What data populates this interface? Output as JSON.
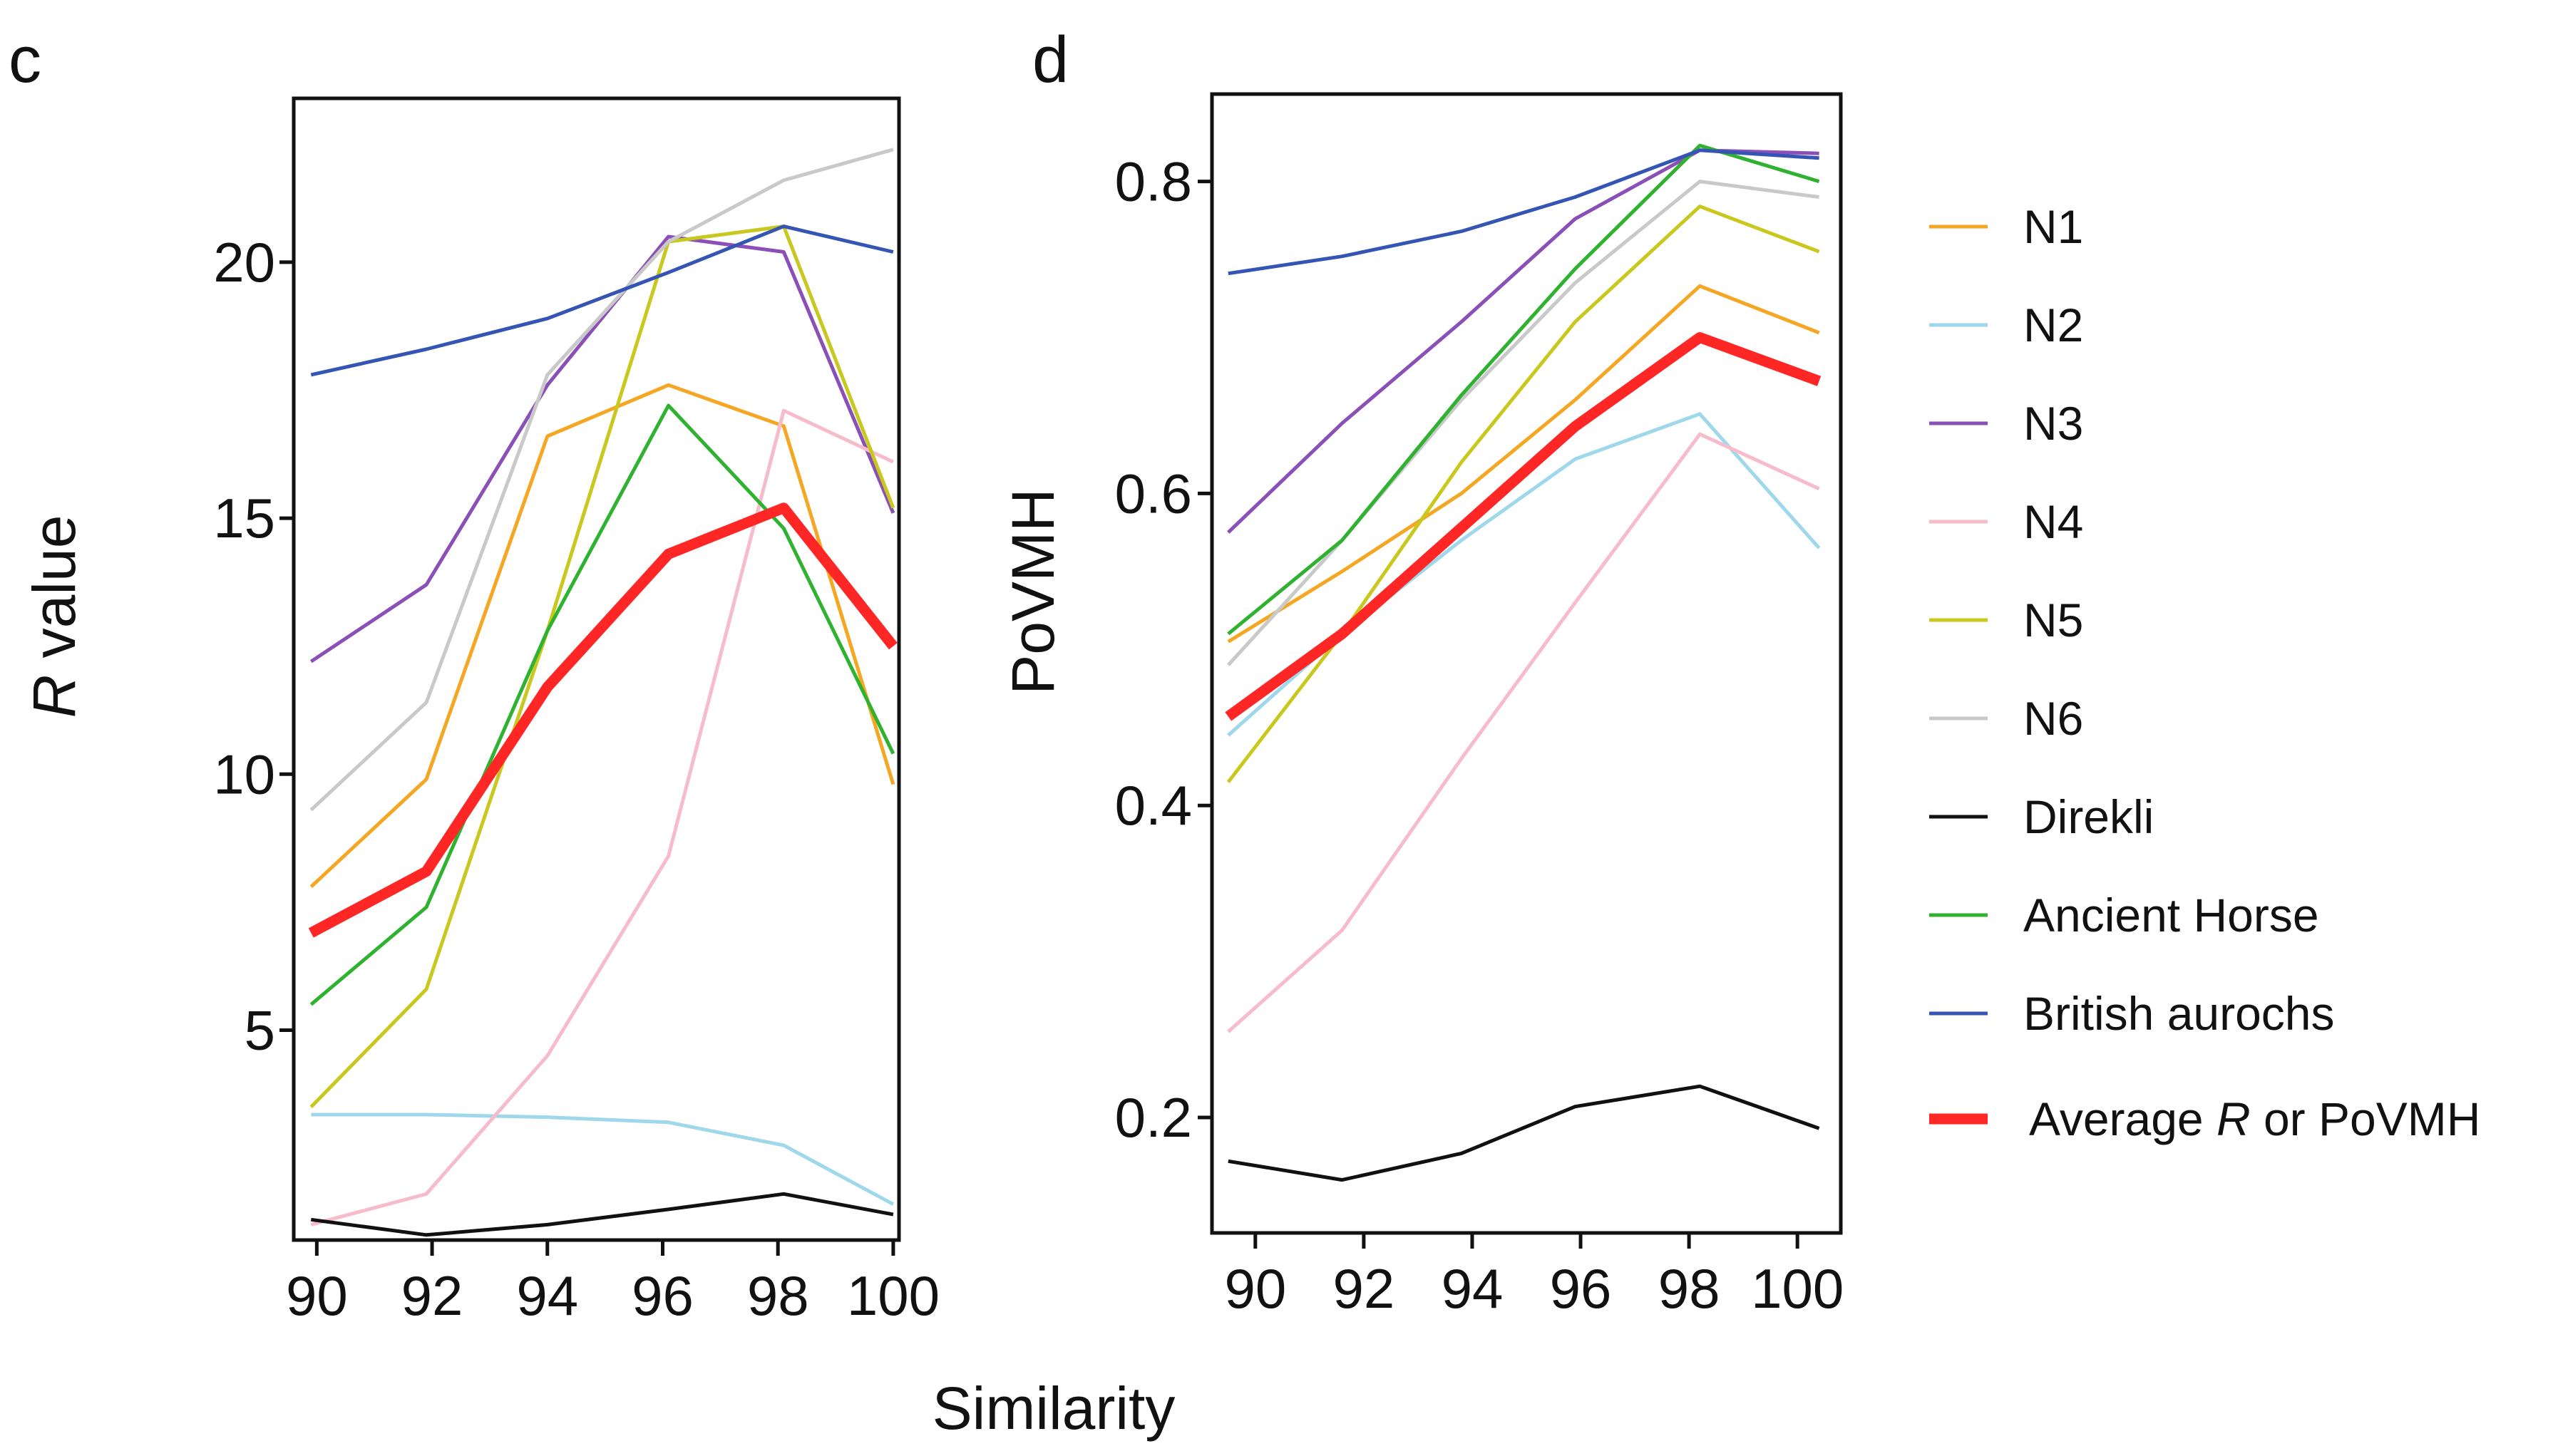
{
  "xlabel": "Similarity",
  "legend": {
    "items": [
      {
        "label": "N1",
        "color": "#f5a623",
        "thick": false
      },
      {
        "label": "N2",
        "color": "#9ed8ea",
        "thick": false
      },
      {
        "label": "N3",
        "color": "#8b4fb8",
        "thick": false
      },
      {
        "label": "N4",
        "color": "#f7bccb",
        "thick": false
      },
      {
        "label": "N5",
        "color": "#c8c81e",
        "thick": false
      },
      {
        "label": "N6",
        "color": "#c9c9c9",
        "thick": false
      },
      {
        "label": "Direkli",
        "color": "#111111",
        "thick": false
      },
      {
        "label": "Ancient Horse",
        "color": "#2fb22f",
        "thick": false
      },
      {
        "label": "British aurochs",
        "color": "#3555b5",
        "thick": false
      },
      {
        "label_prefix": "Average ",
        "label_italic": "R",
        "label_suffix": " or PoVMH",
        "color": "#ff2626",
        "thick": true
      }
    ]
  },
  "chart_data": [
    {
      "panel": "c",
      "type": "line",
      "title": "",
      "xlabel": "Similarity",
      "ylabel_italic": "R",
      "ylabel_rest": " value",
      "xlim": [
        89.6,
        100.1
      ],
      "ylim": [
        0.9,
        23.2
      ],
      "xticks": [
        90,
        92,
        94,
        96,
        98,
        100
      ],
      "xtick_labels": [
        "90",
        "92",
        "94",
        "96",
        "98",
        "100"
      ],
      "yticks": [
        5,
        10,
        15,
        20
      ],
      "ytick_labels": [
        "5",
        "10",
        "15",
        "20"
      ],
      "series": [
        {
          "name": "N1",
          "x": [
            89.9,
            91.9,
            94.0,
            96.1,
            98.1,
            100.0
          ],
          "values": [
            7.8,
            9.9,
            16.6,
            17.6,
            16.8,
            9.8
          ]
        },
        {
          "name": "N2",
          "x": [
            89.9,
            91.9,
            94.0,
            96.1,
            98.1,
            100.0
          ],
          "values": [
            3.35,
            3.35,
            3.3,
            3.2,
            2.75,
            1.6
          ]
        },
        {
          "name": "N3",
          "x": [
            89.9,
            91.9,
            94.0,
            96.1,
            98.1,
            100.0
          ],
          "values": [
            12.2,
            13.7,
            17.6,
            20.5,
            20.2,
            15.1
          ]
        },
        {
          "name": "N4",
          "x": [
            89.9,
            91.9,
            94.0,
            96.1,
            98.1,
            100.0
          ],
          "values": [
            1.2,
            1.8,
            4.5,
            8.4,
            17.1,
            16.1
          ]
        },
        {
          "name": "N5",
          "x": [
            89.9,
            91.9,
            94.0,
            96.1,
            98.1,
            100.0
          ],
          "values": [
            3.5,
            5.8,
            12.8,
            20.4,
            20.7,
            15.2
          ]
        },
        {
          "name": "N6",
          "x": [
            89.9,
            91.9,
            94.0,
            96.1,
            98.1,
            100.0
          ],
          "values": [
            9.3,
            11.4,
            17.8,
            20.4,
            21.6,
            22.2
          ]
        },
        {
          "name": "Direkli",
          "x": [
            89.9,
            91.9,
            94.0,
            96.1,
            98.1,
            100.0
          ],
          "values": [
            1.3,
            1.0,
            1.2,
            1.5,
            1.8,
            1.4
          ]
        },
        {
          "name": "Ancient Horse",
          "x": [
            89.9,
            91.9,
            94.0,
            96.1,
            98.1,
            100.0
          ],
          "values": [
            5.5,
            7.4,
            12.8,
            17.2,
            14.8,
            10.4
          ]
        },
        {
          "name": "British aurochs",
          "x": [
            89.9,
            91.9,
            94.0,
            96.1,
            98.1,
            100.0
          ],
          "values": [
            17.8,
            18.3,
            18.9,
            19.8,
            20.7,
            20.2
          ]
        },
        {
          "name": "Average R or PoVMH",
          "x": [
            89.9,
            91.9,
            94.0,
            96.1,
            98.1,
            100.0
          ],
          "values": [
            6.9,
            8.1,
            11.7,
            14.3,
            15.2,
            12.5
          ]
        }
      ]
    },
    {
      "panel": "d",
      "type": "line",
      "title": "",
      "xlabel": "Similarity",
      "ylabel": "PoVMH",
      "xlim": [
        89.2,
        100.8
      ],
      "ylim": [
        0.126,
        0.856
      ],
      "xticks": [
        90,
        92,
        94,
        96,
        98,
        100
      ],
      "xtick_labels": [
        "90",
        "92",
        "94",
        "96",
        "98",
        "100"
      ],
      "yticks": [
        0.2,
        0.4,
        0.6,
        0.8
      ],
      "ytick_labels": [
        "0.2",
        "0.4",
        "0.6",
        "0.8"
      ],
      "series": [
        {
          "name": "N1",
          "x": [
            89.5,
            91.6,
            93.8,
            95.9,
            98.2,
            100.4
          ],
          "values": [
            0.505,
            0.55,
            0.6,
            0.66,
            0.733,
            0.703
          ]
        },
        {
          "name": "N2",
          "x": [
            89.5,
            91.6,
            93.8,
            95.9,
            98.2,
            100.4
          ],
          "values": [
            0.445,
            0.51,
            0.57,
            0.622,
            0.651,
            0.565
          ]
        },
        {
          "name": "N3",
          "x": [
            89.5,
            91.6,
            93.8,
            95.9,
            98.2,
            100.4
          ],
          "values": [
            0.575,
            0.645,
            0.71,
            0.776,
            0.82,
            0.818
          ]
        },
        {
          "name": "N4",
          "x": [
            89.5,
            91.6,
            93.8,
            95.9,
            98.2,
            100.4
          ],
          "values": [
            0.255,
            0.32,
            0.43,
            0.53,
            0.638,
            0.603
          ]
        },
        {
          "name": "N5",
          "x": [
            89.5,
            91.6,
            93.8,
            95.9,
            98.2,
            100.4
          ],
          "values": [
            0.415,
            0.51,
            0.62,
            0.71,
            0.784,
            0.755
          ]
        },
        {
          "name": "N6",
          "x": [
            89.5,
            91.6,
            93.8,
            95.9,
            98.2,
            100.4
          ],
          "values": [
            0.49,
            0.57,
            0.66,
            0.735,
            0.8,
            0.79
          ]
        },
        {
          "name": "Direkli",
          "x": [
            89.5,
            91.6,
            93.8,
            95.9,
            98.2,
            100.4
          ],
          "values": [
            0.172,
            0.16,
            0.177,
            0.207,
            0.22,
            0.193
          ]
        },
        {
          "name": "Ancient Horse",
          "x": [
            89.5,
            91.6,
            93.8,
            95.9,
            98.2,
            100.4
          ],
          "values": [
            0.51,
            0.57,
            0.663,
            0.744,
            0.823,
            0.8
          ]
        },
        {
          "name": "British aurochs",
          "x": [
            89.5,
            91.6,
            93.8,
            95.9,
            98.2,
            100.4
          ],
          "values": [
            0.741,
            0.752,
            0.768,
            0.79,
            0.82,
            0.815
          ]
        },
        {
          "name": "Average R or PoVMH",
          "x": [
            89.5,
            91.6,
            93.8,
            95.9,
            98.2,
            100.4
          ],
          "values": [
            0.457,
            0.51,
            0.578,
            0.643,
            0.7,
            0.672
          ]
        }
      ]
    }
  ]
}
